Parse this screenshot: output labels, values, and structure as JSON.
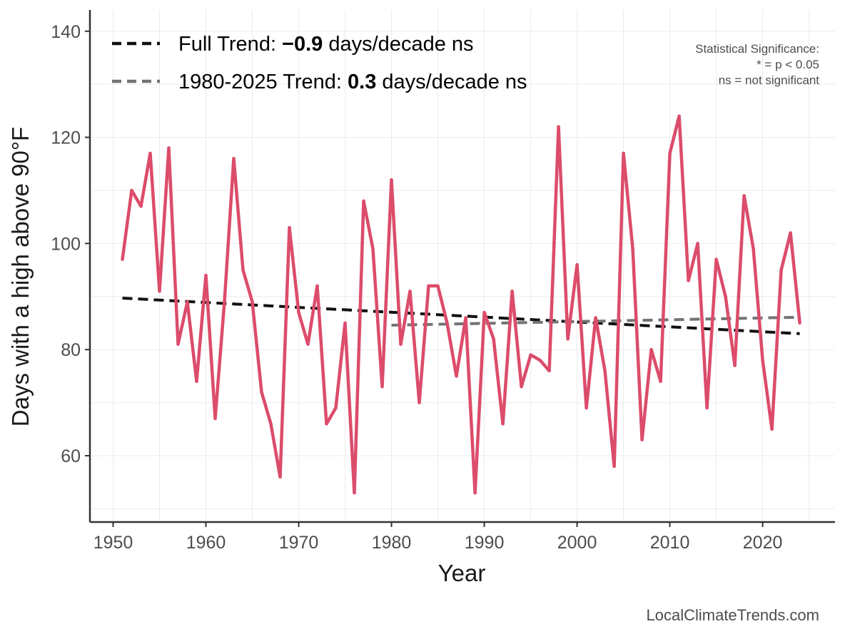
{
  "chart_data": {
    "type": "line",
    "xlabel": "Year",
    "ylabel": "Days with a high above 90°F",
    "xlim": [
      1947.5,
      2027.8
    ],
    "ylim": [
      47.5,
      144
    ],
    "x_ticks": [
      1950,
      1960,
      1970,
      1980,
      1990,
      2000,
      2010,
      2020
    ],
    "y_ticks": [
      60,
      80,
      100,
      120,
      140
    ],
    "series": [
      {
        "name": "Days above 90°F",
        "color": "#dc4c6b",
        "x": [
          1951,
          1952,
          1953,
          1954,
          1955,
          1956,
          1957,
          1958,
          1959,
          1960,
          1961,
          1962,
          1963,
          1964,
          1965,
          1966,
          1967,
          1968,
          1969,
          1970,
          1971,
          1972,
          1973,
          1974,
          1975,
          1976,
          1977,
          1978,
          1979,
          1980,
          1981,
          1982,
          1983,
          1984,
          1985,
          1986,
          1987,
          1988,
          1989,
          1990,
          1991,
          1992,
          1993,
          1994,
          1995,
          1996,
          1997,
          1998,
          1999,
          2000,
          2001,
          2002,
          2003,
          2004,
          2005,
          2006,
          2007,
          2008,
          2009,
          2010,
          2011,
          2012,
          2013,
          2014,
          2015,
          2016,
          2017,
          2018,
          2019,
          2020,
          2021,
          2022,
          2023,
          2024
        ],
        "values": [
          97,
          110,
          107,
          117,
          91,
          118,
          81,
          89,
          74,
          94,
          67,
          89,
          116,
          95,
          89,
          72,
          66,
          56,
          103,
          87,
          81,
          92,
          66,
          69,
          85,
          53,
          108,
          99,
          73,
          112,
          81,
          91,
          70,
          92,
          92,
          85,
          75,
          86,
          53,
          87,
          82,
          66,
          91,
          73,
          79,
          78,
          76,
          122,
          82,
          96,
          69,
          86,
          76,
          58,
          117,
          99,
          63,
          80,
          74,
          117,
          124,
          93,
          100,
          69,
          97,
          90,
          77,
          109,
          99,
          78,
          65,
          95,
          102,
          85
        ]
      }
    ],
    "trend_lines": [
      {
        "name": "Full Trend",
        "color": "#111111",
        "x": [
          1951,
          2024
        ],
        "values": [
          89.7,
          83.0
        ]
      },
      {
        "name": "1980-2025 Trend",
        "color": "#737373",
        "x": [
          1980,
          2024
        ],
        "values": [
          84.6,
          86.1
        ]
      }
    ],
    "legend": [
      {
        "prefix": "Full Trend: ",
        "value": "−0.9",
        "suffix": " days/decade ns",
        "color": "#111111"
      },
      {
        "prefix": "1980-2025 Trend: ",
        "value": "0.3",
        "suffix": " days/decade ns",
        "color": "#737373"
      }
    ],
    "legend_position": "top-left",
    "significance_note": [
      "Statistical Significance:",
      "* = p < 0.05",
      "ns = not significant"
    ],
    "grid": true
  },
  "credit": "LocalClimateTrends.com"
}
